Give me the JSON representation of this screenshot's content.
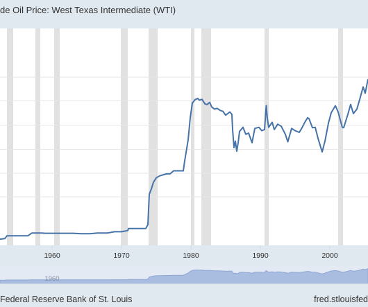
{
  "title": "de Oil Price: West Texas Intermediate (WTI)",
  "footer": {
    "credit": "Federal Reserve Bank of St. Louis",
    "site": "fred.stlouisfed"
  },
  "colors": {
    "background": "#e1e9f0",
    "plot": "#ffffff",
    "line": "#4572a7",
    "recession": "#e1e1e1",
    "grid": "#e6e6e6",
    "navigator_fill": "#a9bde0",
    "navigator_window": "#d1dcec"
  },
  "chart_data": {
    "type": "line",
    "title": "de Oil Price: West Texas Intermediate (WTI)",
    "xlabel": "",
    "ylabel": "",
    "xlim": [
      1952.5,
      2005.5
    ],
    "ylim": [
      0,
      7.4
    ],
    "grid": true,
    "legend": "none",
    "x_ticks": [
      "1960",
      "1970",
      "1980",
      "1990",
      "2000"
    ],
    "y_scale": "log",
    "recessions": [
      [
        1953.5,
        1954.4
      ],
      [
        1957.6,
        1958.3
      ],
      [
        1960.3,
        1961.1
      ],
      [
        1969.9,
        1970.9
      ],
      [
        1973.9,
        1975.2
      ],
      [
        1980.0,
        1980.5
      ],
      [
        1981.5,
        1982.9
      ],
      [
        1990.6,
        1991.2
      ],
      [
        2001.2,
        2001.9
      ]
    ],
    "series": [
      {
        "values": [
          [
            1952.5,
            1.5
          ],
          [
            1953.2,
            1.52
          ],
          [
            1953.5,
            1.62
          ],
          [
            1955.0,
            1.62
          ],
          [
            1956.5,
            1.62
          ],
          [
            1957.1,
            1.73
          ],
          [
            1958.5,
            1.73
          ],
          [
            1959.0,
            1.72
          ],
          [
            1961.0,
            1.72
          ],
          [
            1963.0,
            1.72
          ],
          [
            1964.2,
            1.7
          ],
          [
            1965.5,
            1.7
          ],
          [
            1966.5,
            1.73
          ],
          [
            1968.0,
            1.73
          ],
          [
            1969.0,
            1.78
          ],
          [
            1970.0,
            1.78
          ],
          [
            1970.9,
            1.83
          ],
          [
            1971.0,
            1.92
          ],
          [
            1972.5,
            1.92
          ],
          [
            1973.5,
            1.92
          ],
          [
            1973.8,
            2.1
          ],
          [
            1974.0,
            4.25
          ],
          [
            1974.3,
            4.8
          ],
          [
            1974.6,
            5.6
          ],
          [
            1975.0,
            6.2
          ],
          [
            1975.5,
            6.5
          ],
          [
            1976.5,
            6.8
          ],
          [
            1977.0,
            6.8
          ],
          [
            1977.5,
            7.3
          ],
          [
            1978.0,
            7.3
          ],
          [
            1978.9,
            7.3
          ],
          [
            1979.1,
            9.2
          ],
          [
            1979.6,
            15.0
          ],
          [
            1979.9,
            25.0
          ],
          [
            1980.2,
            35.0
          ],
          [
            1980.6,
            38.0
          ],
          [
            1981.0,
            39.0
          ],
          [
            1981.2,
            37.5
          ],
          [
            1981.6,
            38.2
          ],
          [
            1982.0,
            34.5
          ],
          [
            1982.3,
            33.8
          ],
          [
            1982.7,
            35.6
          ],
          [
            1983.0,
            32.0
          ],
          [
            1983.4,
            30.5
          ],
          [
            1983.8,
            31.0
          ],
          [
            1984.2,
            29.6
          ],
          [
            1984.6,
            29.0
          ],
          [
            1985.0,
            26.5
          ],
          [
            1985.6,
            28.5
          ],
          [
            1985.9,
            27.0
          ],
          [
            1986.0,
            19.0
          ],
          [
            1986.2,
            12.5
          ],
          [
            1986.4,
            14.5
          ],
          [
            1986.6,
            11.5
          ],
          [
            1986.8,
            14.0
          ],
          [
            1987.0,
            18.2
          ],
          [
            1987.5,
            20.0
          ],
          [
            1987.9,
            17.0
          ],
          [
            1988.3,
            17.5
          ],
          [
            1988.8,
            14.0
          ],
          [
            1989.2,
            19.5
          ],
          [
            1989.8,
            20.0
          ],
          [
            1990.2,
            18.5
          ],
          [
            1990.6,
            19.0
          ],
          [
            1990.75,
            27.0
          ],
          [
            1990.85,
            33.0
          ],
          [
            1991.0,
            24.5
          ],
          [
            1991.2,
            20.0
          ],
          [
            1991.7,
            22.5
          ],
          [
            1992.0,
            19.0
          ],
          [
            1992.5,
            21.5
          ],
          [
            1993.0,
            20.5
          ],
          [
            1993.6,
            17.0
          ],
          [
            1993.95,
            14.3
          ],
          [
            1994.5,
            19.5
          ],
          [
            1995.0,
            18.5
          ],
          [
            1995.6,
            17.8
          ],
          [
            1996.0,
            19.8
          ],
          [
            1996.4,
            22.5
          ],
          [
            1996.8,
            25.0
          ],
          [
            1997.0,
            24.5
          ],
          [
            1997.5,
            19.8
          ],
          [
            1997.9,
            20.0
          ],
          [
            1998.3,
            15.5
          ],
          [
            1998.9,
            11.3
          ],
          [
            1999.3,
            14.5
          ],
          [
            1999.8,
            22.0
          ],
          [
            2000.2,
            28.0
          ],
          [
            2000.8,
            33.0
          ],
          [
            2001.2,
            28.5
          ],
          [
            2001.8,
            20.0
          ],
          [
            2002.0,
            19.8
          ],
          [
            2002.6,
            27.0
          ],
          [
            2003.0,
            34.0
          ],
          [
            2003.4,
            27.5
          ],
          [
            2003.9,
            30.5
          ],
          [
            2004.3,
            38.0
          ],
          [
            2004.8,
            51.0
          ],
          [
            2005.1,
            44.0
          ],
          [
            2005.5,
            61.0
          ]
        ]
      }
    ]
  }
}
